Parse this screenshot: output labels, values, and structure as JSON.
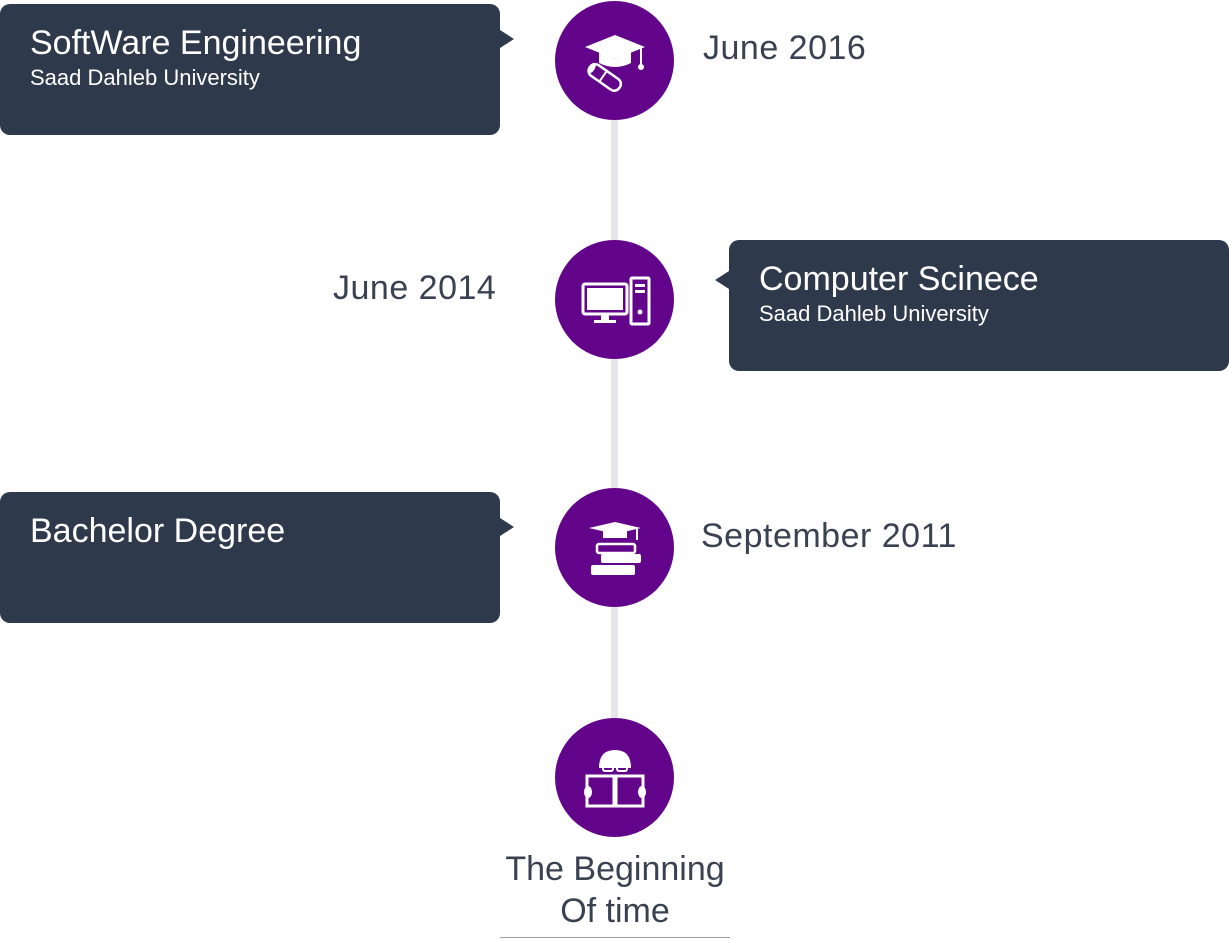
{
  "colors": {
    "node": "#63058a",
    "card": "#2e394b",
    "line": "#e6e6ea",
    "date_text": "#3a4252"
  },
  "timeline": {
    "items": [
      {
        "title": "SoftWare Engineering",
        "subtitle": "Saad Dahleb University",
        "date": "June 2016",
        "icon": "graduation-cap-diploma-icon",
        "side": "left"
      },
      {
        "title": "Computer Scinece",
        "subtitle": "Saad Dahleb University",
        "date": "June 2014",
        "icon": "desktop-computer-icon",
        "side": "right"
      },
      {
        "title": "Bachelor Degree",
        "subtitle": "",
        "date": "September 2011",
        "icon": "books-cap-icon",
        "side": "left"
      }
    ],
    "beginning": {
      "line1": "The Beginning",
      "line2": "Of time",
      "icon": "reading-person-icon"
    }
  }
}
